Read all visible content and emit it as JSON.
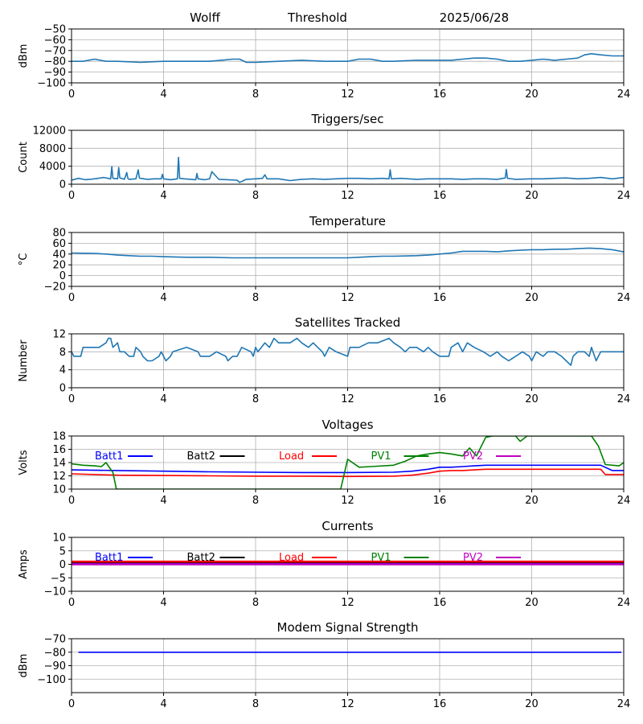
{
  "header": {
    "station": "Wolff",
    "mode": "Threshold",
    "date": "2025/06/28"
  },
  "colors": {
    "primary_series": "#1f77b4",
    "batt1": "#0000ff",
    "batt2": "#000000",
    "load": "#ff0000",
    "pv1": "#008000",
    "pv2": "#bf00bf",
    "modem": "#0000ff",
    "grid": "#b0b0b0"
  },
  "chart_data": [
    {
      "id": "noise",
      "type": "line",
      "title": "",
      "ylabel": "dBm",
      "xlim": [
        0,
        24
      ],
      "ylim": [
        -100,
        -50
      ],
      "xticks": [
        0,
        4,
        8,
        12,
        16,
        20,
        24
      ],
      "yticks": [
        -100,
        -90,
        -80,
        -70,
        -60,
        -50
      ],
      "series": [
        {
          "color_key": "primary_series",
          "x": [
            0,
            0.5,
            1,
            1.5,
            2,
            3,
            4,
            5,
            6,
            6.5,
            7,
            7.3,
            7.6,
            8,
            9,
            10,
            11,
            12,
            12.5,
            13,
            13.5,
            14,
            15,
            16,
            16.5,
            17,
            17.5,
            18,
            18.5,
            19,
            19.5,
            20,
            20.5,
            21,
            21.5,
            22,
            22.3,
            22.6,
            23,
            23.5,
            24
          ],
          "y": [
            -80,
            -80,
            -78,
            -80,
            -80,
            -81,
            -80,
            -80,
            -80,
            -79,
            -78,
            -78,
            -81,
            -81,
            -80,
            -79,
            -80,
            -80,
            -78,
            -78,
            -80,
            -80,
            -79,
            -79,
            -79,
            -78,
            -77,
            -77,
            -78,
            -80,
            -80,
            -79,
            -78,
            -79,
            -78,
            -77,
            -74,
            -73,
            -74,
            -75,
            -75
          ]
        }
      ]
    },
    {
      "id": "triggers",
      "type": "line",
      "title": "Triggers/sec",
      "ylabel": "Count",
      "xlim": [
        0,
        24
      ],
      "ylim": [
        0,
        12000
      ],
      "xticks": [
        0,
        4,
        8,
        12,
        16,
        20,
        24
      ],
      "yticks": [
        0,
        4000,
        8000,
        12000
      ],
      "series": [
        {
          "color_key": "primary_series",
          "x": [
            0,
            0.3,
            0.6,
            1.0,
            1.4,
            1.7,
            1.75,
            1.8,
            2.0,
            2.05,
            2.1,
            2.3,
            2.4,
            2.45,
            2.5,
            2.8,
            2.9,
            2.95,
            3.0,
            3.3,
            3.6,
            3.9,
            3.95,
            4.0,
            4.3,
            4.6,
            4.65,
            4.7,
            4.9,
            5.2,
            5.4,
            5.45,
            5.5,
            5.8,
            6.0,
            6.1,
            6.4,
            6.8,
            7.2,
            7.3,
            7.6,
            8.0,
            8.3,
            8.4,
            8.5,
            9.0,
            9.5,
            10.0,
            10.5,
            11.0,
            11.5,
            12.0,
            12.5,
            13.0,
            13.5,
            13.8,
            13.85,
            13.9,
            14.3,
            15.0,
            15.5,
            16.0,
            16.5,
            17.0,
            17.5,
            18.0,
            18.5,
            18.85,
            18.9,
            18.95,
            19.3,
            20.0,
            20.5,
            21.0,
            21.5,
            22.0,
            22.5,
            23.0,
            23.5,
            24.0
          ],
          "y": [
            900,
            1300,
            1000,
            1200,
            1500,
            1200,
            3900,
            1300,
            1200,
            3700,
            1400,
            1100,
            2600,
            1300,
            1100,
            1200,
            3200,
            1400,
            1300,
            1100,
            1200,
            1200,
            2200,
            1200,
            1000,
            1200,
            6000,
            1300,
            1200,
            1100,
            1000,
            2400,
            1200,
            1000,
            1200,
            2800,
            1100,
            1000,
            900,
            400,
            1100,
            1200,
            1300,
            2100,
            1200,
            1200,
            800,
            1100,
            1200,
            1100,
            1200,
            1300,
            1300,
            1200,
            1300,
            1200,
            3200,
            1200,
            1300,
            1100,
            1200,
            1200,
            1200,
            1100,
            1200,
            1200,
            1100,
            1400,
            3300,
            1300,
            1100,
            1200,
            1200,
            1300,
            1400,
            1200,
            1300,
            1500,
            1200,
            1500
          ]
        }
      ]
    },
    {
      "id": "temperature",
      "type": "line",
      "title": "Temperature",
      "ylabel": "°C",
      "xlim": [
        0,
        24
      ],
      "ylim": [
        -20,
        80
      ],
      "xticks": [
        0,
        4,
        8,
        12,
        16,
        20,
        24
      ],
      "yticks": [
        -20,
        0,
        20,
        40,
        60,
        80
      ],
      "series": [
        {
          "color_key": "primary_series",
          "x": [
            0,
            1,
            1.5,
            2,
            2.5,
            3,
            3.5,
            4,
            5,
            6,
            7,
            8,
            9,
            10,
            11,
            12,
            12.5,
            13,
            13.5,
            14,
            15,
            15.5,
            16,
            16.5,
            17,
            17.5,
            18,
            18.5,
            19,
            19.5,
            20,
            20.5,
            21,
            21.5,
            22,
            22.5,
            23,
            23.5,
            24
          ],
          "y": [
            42,
            41,
            40,
            38,
            37,
            36,
            36,
            35,
            34,
            34,
            33,
            33,
            33,
            33,
            33,
            33,
            34,
            35,
            36,
            36,
            37,
            38,
            40,
            42,
            45,
            45,
            45,
            44,
            46,
            47,
            48,
            48,
            49,
            49,
            50,
            51,
            50,
            48,
            44
          ]
        }
      ]
    },
    {
      "id": "satellites",
      "type": "line",
      "title": "Satellites Tracked",
      "ylabel": "Number",
      "xlim": [
        0,
        24
      ],
      "ylim": [
        0,
        12
      ],
      "xticks": [
        0,
        4,
        8,
        12,
        16,
        20,
        24
      ],
      "yticks": [
        0,
        4,
        8,
        12
      ],
      "series": [
        {
          "color_key": "primary_series",
          "x": [
            0,
            0.1,
            0.4,
            0.5,
            1.2,
            1.5,
            1.6,
            1.7,
            1.8,
            2.0,
            2.1,
            2.3,
            2.5,
            2.7,
            2.8,
            3.0,
            3.1,
            3.3,
            3.5,
            3.8,
            3.9,
            4.0,
            4.1,
            4.3,
            4.4,
            5.0,
            5.5,
            5.6,
            6.0,
            6.3,
            6.7,
            6.8,
            7.0,
            7.2,
            7.3,
            7.4,
            7.8,
            7.9,
            8.0,
            8.1,
            8.4,
            8.6,
            8.8,
            9.0,
            9.5,
            9.8,
            10.0,
            10.3,
            10.5,
            10.9,
            11.0,
            11.2,
            11.5,
            12.0,
            12.1,
            12.5,
            12.9,
            13.0,
            13.3,
            13.8,
            14.0,
            14.3,
            14.5,
            14.7,
            15.0,
            15.3,
            15.5,
            15.7,
            16.0,
            16.4,
            16.5,
            16.8,
            17.0,
            17.2,
            17.5,
            17.9,
            18.2,
            18.5,
            18.7,
            19.0,
            19.3,
            19.6,
            19.9,
            20.0,
            20.2,
            20.5,
            20.7,
            21.0,
            21.3,
            21.5,
            21.7,
            21.8,
            22.0,
            22.3,
            22.5,
            22.6,
            22.8,
            23.0,
            23.2,
            23.5,
            24
          ],
          "y": [
            8,
            7,
            7,
            9,
            9,
            10,
            11,
            11,
            9,
            10,
            8,
            8,
            7,
            7,
            9,
            8,
            7,
            6,
            6,
            7,
            8,
            7,
            6,
            7,
            8,
            9,
            8,
            7,
            7,
            8,
            7,
            6,
            7,
            7,
            8,
            9,
            8,
            7,
            9,
            8,
            10,
            9,
            11,
            10,
            10,
            11,
            10,
            9,
            10,
            8,
            7,
            9,
            8,
            7,
            9,
            9,
            10,
            10,
            10,
            11,
            10,
            9,
            8,
            9,
            9,
            8,
            9,
            8,
            7,
            7,
            9,
            10,
            8,
            10,
            9,
            8,
            7,
            8,
            7,
            6,
            7,
            8,
            7,
            6,
            8,
            7,
            8,
            8,
            7,
            6,
            5,
            7,
            8,
            8,
            7,
            9,
            6,
            8,
            8,
            8,
            8
          ]
        }
      ]
    },
    {
      "id": "voltages",
      "type": "line",
      "title": "Voltages",
      "ylabel": "Volts",
      "xlim": [
        0,
        24
      ],
      "ylim": [
        10,
        18
      ],
      "xticks": [
        0,
        4,
        8,
        12,
        16,
        20,
        24
      ],
      "yticks": [
        10,
        12,
        14,
        16,
        18
      ],
      "legend": [
        "Batt1",
        "Batt2",
        "Load",
        "PV1",
        "PV2"
      ],
      "series": [
        {
          "name": "Batt1",
          "color_key": "batt1",
          "x": [
            0,
            2,
            4,
            6,
            8,
            10,
            12,
            14,
            14.8,
            15.5,
            16,
            16.5,
            17,
            17.5,
            18,
            20,
            22,
            23,
            23.5,
            24
          ],
          "y": [
            12.9,
            12.8,
            12.7,
            12.6,
            12.55,
            12.5,
            12.5,
            12.55,
            12.7,
            13.0,
            13.3,
            13.3,
            13.4,
            13.5,
            13.6,
            13.6,
            13.6,
            13.6,
            12.8,
            12.8
          ]
        },
        {
          "name": "Load",
          "color_key": "load",
          "x": [
            0,
            2,
            4,
            6,
            8,
            10,
            12,
            14,
            14.8,
            15.5,
            16,
            16.5,
            17,
            17.5,
            18,
            20,
            22,
            23,
            23.2,
            24
          ],
          "y": [
            12.3,
            12.1,
            12.05,
            12.0,
            11.95,
            11.95,
            11.9,
            11.95,
            12.1,
            12.4,
            12.7,
            12.8,
            12.8,
            12.9,
            13.0,
            13.0,
            13.0,
            13.0,
            12.2,
            12.2
          ]
        },
        {
          "name": "PV1",
          "color_key": "pv1",
          "x": [
            0,
            0.5,
            1.0,
            1.3,
            1.5,
            1.8,
            1.95,
            11.7,
            12.0,
            12.5,
            13.0,
            14.0,
            14.5,
            15.0,
            15.5,
            16.0,
            16.5,
            17.0,
            17.3,
            17.6,
            18.0,
            18.3,
            19.3,
            19.5,
            19.8,
            22.6,
            22.9,
            23.2,
            23.8,
            24.0
          ],
          "y": [
            13.8,
            13.6,
            13.5,
            13.4,
            14.0,
            12.5,
            10.0,
            10.0,
            14.5,
            13.3,
            13.4,
            13.6,
            14.2,
            15.0,
            15.3,
            15.5,
            15.3,
            15.0,
            16.2,
            15.0,
            17.8,
            18.0,
            18.0,
            17.2,
            18.0,
            18.0,
            16.5,
            13.7,
            13.5,
            14.0
          ]
        }
      ]
    },
    {
      "id": "currents",
      "type": "line",
      "title": "Currents",
      "ylabel": "Amps",
      "xlim": [
        0,
        24
      ],
      "ylim": [
        -10,
        10
      ],
      "xticks": [
        0,
        4,
        8,
        12,
        16,
        20,
        24
      ],
      "yticks": [
        -10,
        -5,
        0,
        5,
        10
      ],
      "legend": [
        "Batt1",
        "Batt2",
        "Load",
        "PV1",
        "PV2"
      ],
      "series": [
        {
          "name": "PV1",
          "color_key": "pv1",
          "x": [
            0,
            24
          ],
          "y": [
            0.3,
            0.3
          ]
        },
        {
          "name": "Batt2",
          "color_key": "batt2",
          "x": [
            0,
            24
          ],
          "y": [
            0.6,
            0.6
          ]
        },
        {
          "name": "Load",
          "color_key": "load",
          "x": [
            0,
            24
          ],
          "y": [
            1.0,
            1.0
          ]
        },
        {
          "name": "Batt1",
          "color_key": "batt1",
          "x": [
            0,
            24
          ],
          "y": [
            0.1,
            0.1
          ]
        },
        {
          "name": "PV2",
          "color_key": "pv2",
          "x": [
            0,
            24
          ],
          "y": [
            0.0,
            0.0
          ]
        }
      ]
    },
    {
      "id": "modem",
      "type": "line",
      "title": "Modem Signal Strength",
      "ylabel": "dBm",
      "xlim": [
        0,
        24
      ],
      "ylim": [
        -110,
        -70
      ],
      "xticks": [
        0,
        4,
        8,
        12,
        16,
        20,
        24
      ],
      "yticks": [
        -100,
        -90,
        -80,
        -70
      ],
      "series": [
        {
          "color_key": "modem",
          "x": [
            0.3,
            23.9
          ],
          "y": [
            -80,
            -80
          ]
        }
      ]
    }
  ]
}
